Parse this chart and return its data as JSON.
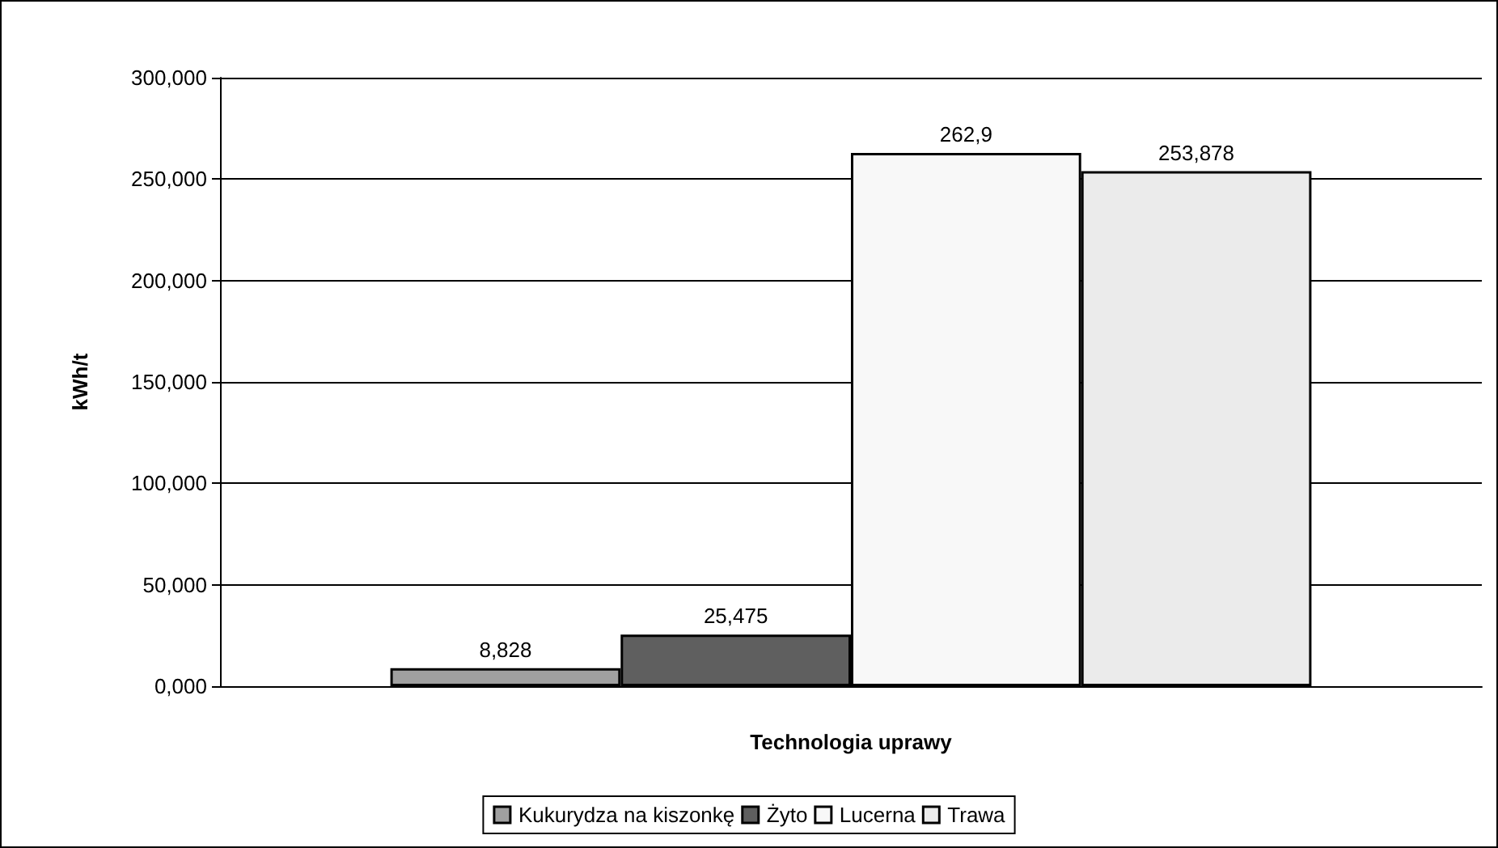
{
  "chart_data": {
    "type": "bar",
    "xlabel": "Technologia uprawy",
    "ylabel": "kWh/t",
    "categories": [
      null
    ],
    "series": [
      {
        "name": "Kukurydza na kiszonkę",
        "color": "#a0a0a0",
        "values": [
          8.828
        ],
        "value_labels": [
          "8,828"
        ]
      },
      {
        "name": "Żyto",
        "color": "#5f5f5f",
        "values": [
          25.475
        ],
        "value_labels": [
          "25,475"
        ]
      },
      {
        "name": "Lucerna",
        "color": "#f8f8f8",
        "values": [
          262.9
        ],
        "value_labels": [
          "262,9"
        ]
      },
      {
        "name": "Trawa",
        "color": "#ebebeb",
        "values": [
          253.878
        ],
        "value_labels": [
          "253,878"
        ]
      }
    ],
    "ylim": [
      0,
      300
    ],
    "yticks": [
      {
        "value": 0,
        "label": "0,000"
      },
      {
        "value": 50,
        "label": "50,000"
      },
      {
        "value": 100,
        "label": "100,000"
      },
      {
        "value": 150,
        "label": "150,000"
      },
      {
        "value": 200,
        "label": "200,000"
      },
      {
        "value": 250,
        "label": "250,000"
      },
      {
        "value": 300,
        "label": "300,000"
      }
    ],
    "grid": "y",
    "legend": "bottom"
  }
}
